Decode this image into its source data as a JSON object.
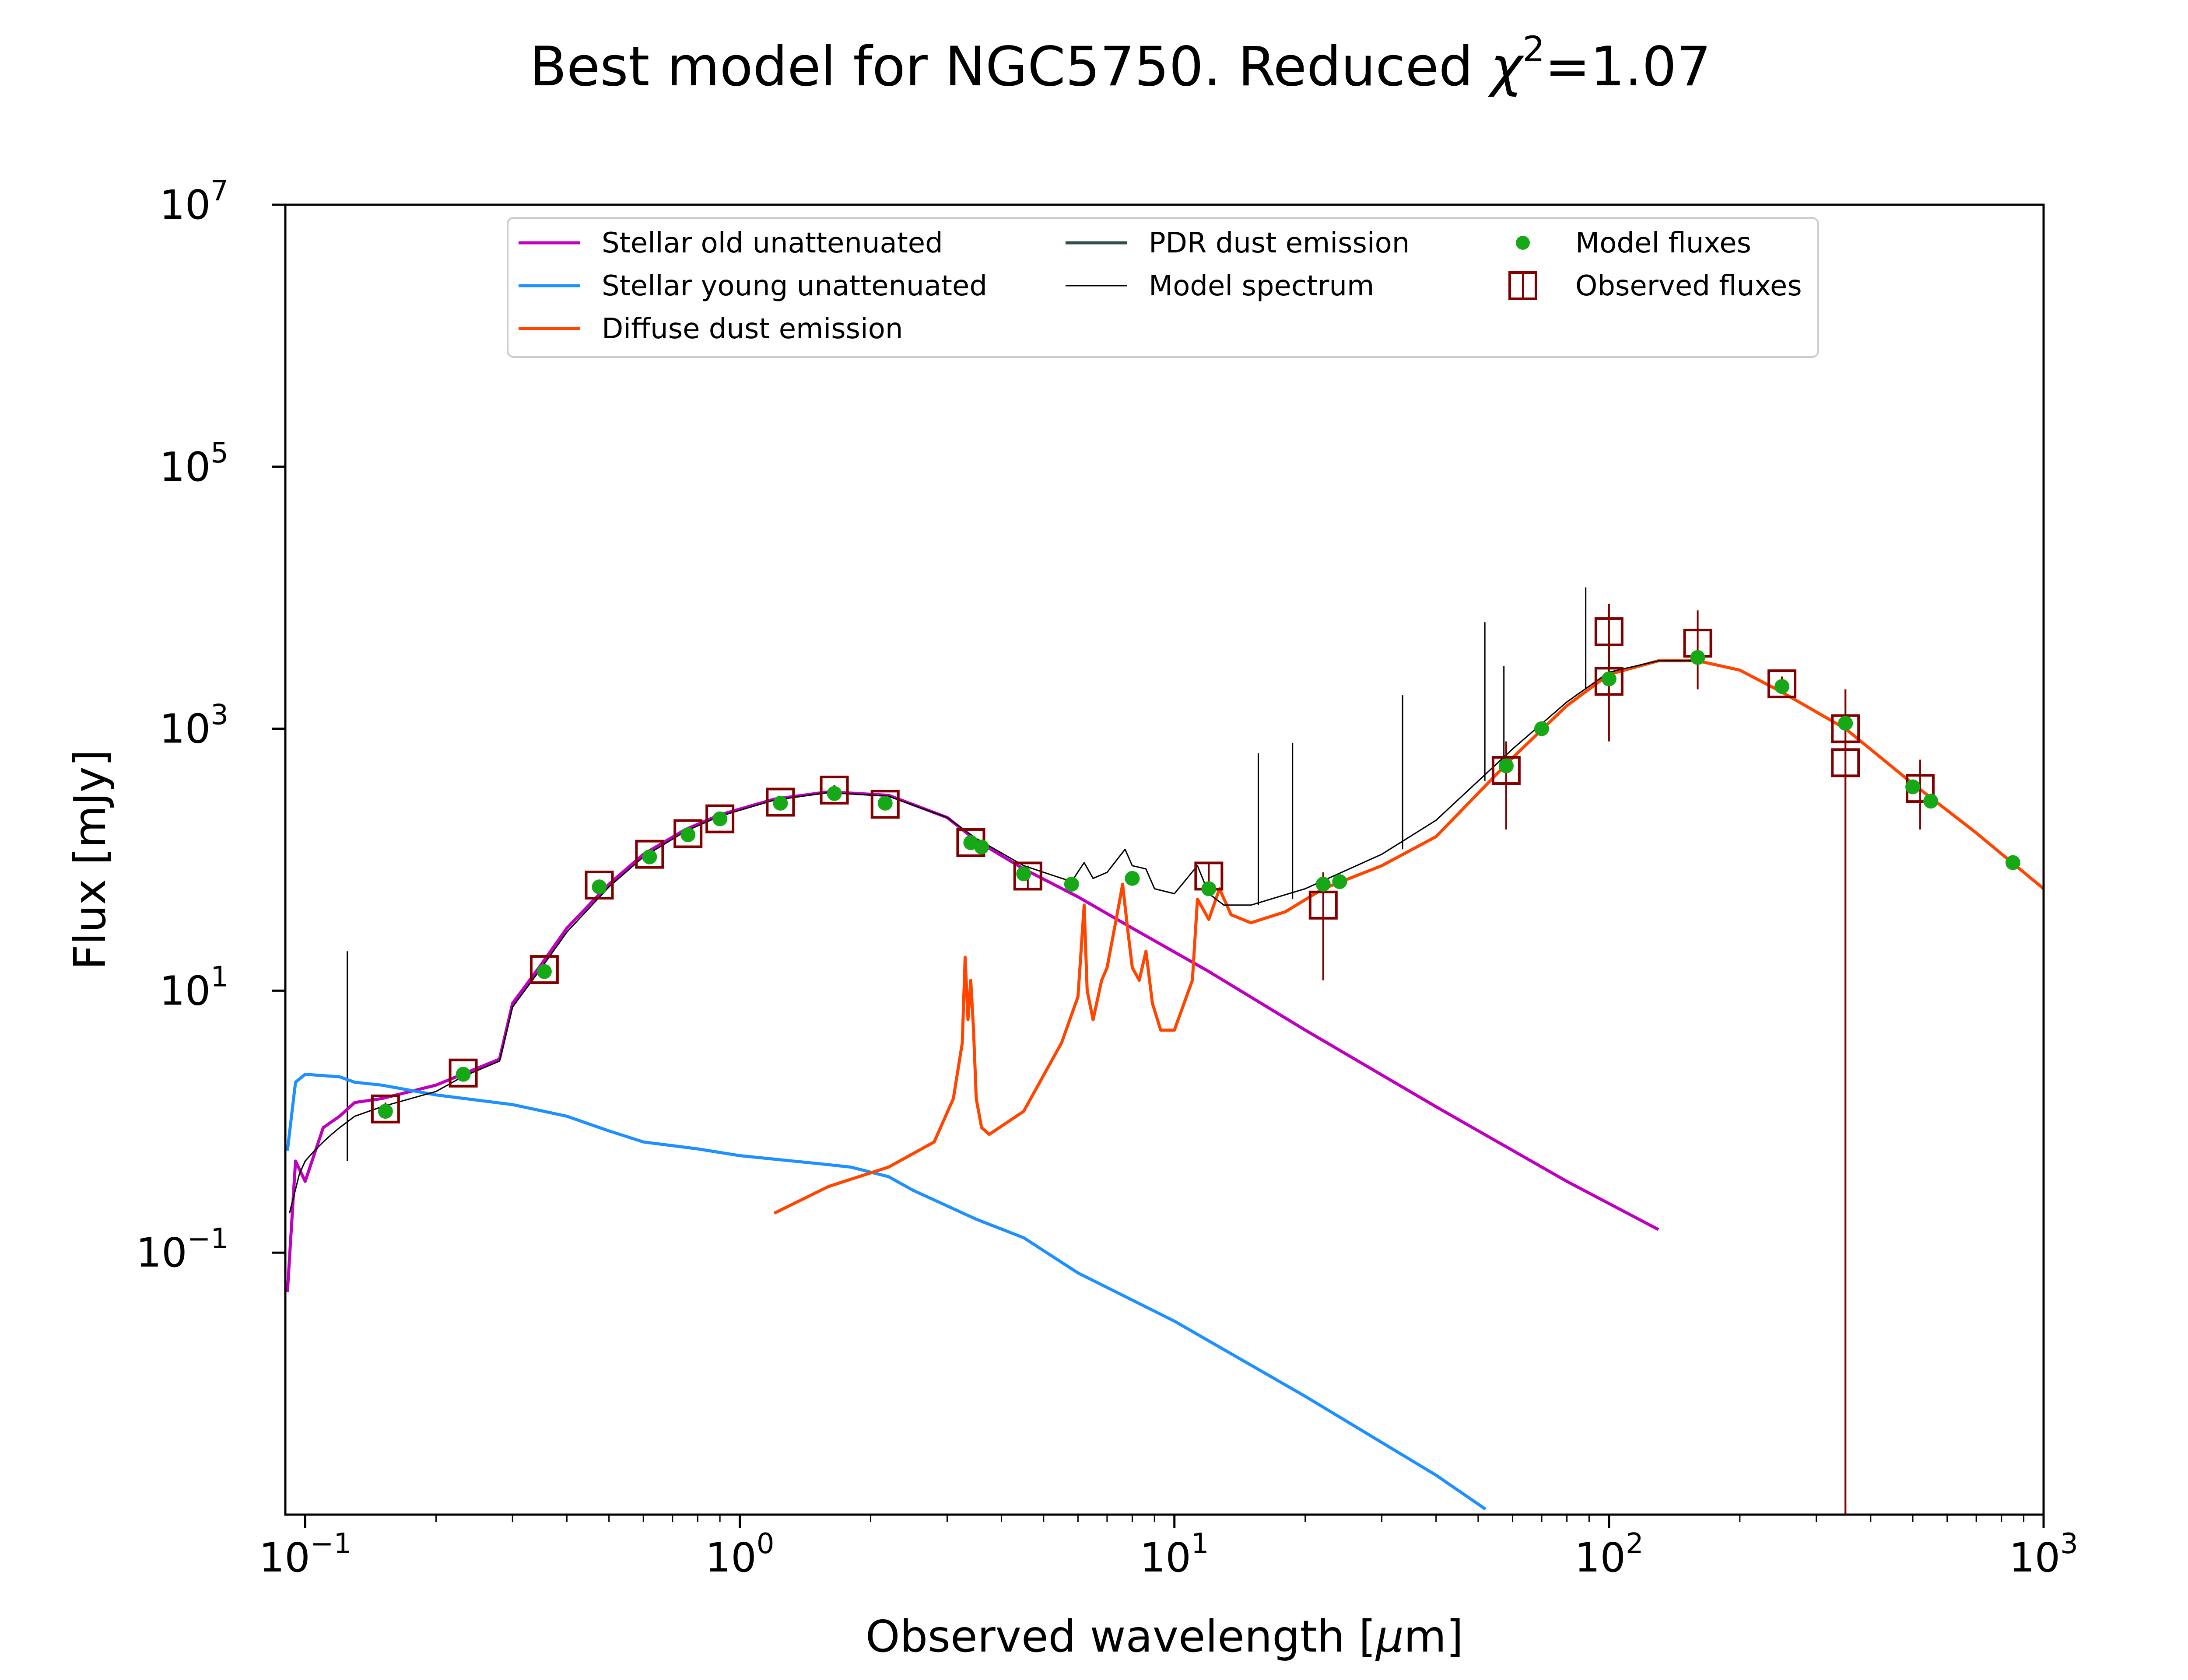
{
  "chart_data": {
    "type": "line",
    "title_prefix": "Best model for NGC5750. Reduced ",
    "title_chi": "χ",
    "title_chi_exp": "2",
    "title_value": "=1.07",
    "xlabel_prefix": "Observed wavelength [",
    "xlabel_mu": "μ",
    "xlabel_suffix": "m]",
    "ylabel": "Flux [mJy]",
    "x_scale": "log",
    "y_scale": "log",
    "xlim": [
      0.09,
      1000
    ],
    "ylim": [
      0.001,
      10000000
    ],
    "grid": false,
    "legend_position": "top-center",
    "x_ticks": [
      {
        "value": 0.1,
        "base": "10",
        "exp": "−1"
      },
      {
        "value": 1,
        "base": "10",
        "exp": "0"
      },
      {
        "value": 10,
        "base": "10",
        "exp": "1"
      },
      {
        "value": 100,
        "base": "10",
        "exp": "2"
      },
      {
        "value": 1000,
        "base": "10",
        "exp": "3"
      }
    ],
    "y_ticks": [
      {
        "value": 0.1,
        "base": "10",
        "exp": "−1"
      },
      {
        "value": 10,
        "base": "10",
        "exp": "1"
      },
      {
        "value": 1000,
        "base": "10",
        "exp": "3"
      },
      {
        "value": 100000,
        "base": "10",
        "exp": "5"
      },
      {
        "value": 10000000,
        "base": "10",
        "exp": "7"
      }
    ],
    "legend": [
      {
        "label": "Stellar old unattenuated",
        "kind": "line",
        "color": "#bf00bf"
      },
      {
        "label": "Stellar young unattenuated",
        "kind": "line",
        "color": "#1e90ff"
      },
      {
        "label": "Diffuse dust emission",
        "kind": "line",
        "color": "#ff4500"
      },
      {
        "label": "PDR dust emission",
        "kind": "line",
        "color": "#2f4f4f"
      },
      {
        "label": "Model spectrum",
        "kind": "thin-line",
        "color": "#000000"
      },
      {
        "label": "Model fluxes",
        "kind": "dot",
        "color": "#17a817"
      },
      {
        "label": "Observed fluxes",
        "kind": "square",
        "color": "#800000"
      }
    ],
    "series": [
      {
        "name": "Stellar old unattenuated",
        "color": "#bf00bf",
        "width": 7,
        "x": [
          0.091,
          0.095,
          0.1,
          0.11,
          0.12,
          0.13,
          0.15,
          0.2,
          0.23,
          0.28,
          0.3,
          0.35,
          0.4,
          0.5,
          0.6,
          0.75,
          0.9,
          1.2,
          1.6,
          2.2,
          3.0,
          3.5,
          4.5,
          6.0,
          8.0,
          12,
          20,
          40,
          80,
          130
        ],
        "y": [
          0.05,
          0.5,
          0.35,
          0.9,
          1.1,
          1.4,
          1.5,
          1.9,
          2.3,
          3.0,
          8.0,
          16,
          30,
          65,
          110,
          170,
          220,
          290,
          330,
          310,
          210,
          140,
          85,
          52,
          30,
          14,
          5,
          1.3,
          0.35,
          0.15
        ]
      },
      {
        "name": "Stellar young unattenuated",
        "color": "#1e90ff",
        "width": 7,
        "x": [
          0.091,
          0.095,
          0.1,
          0.12,
          0.13,
          0.15,
          0.2,
          0.3,
          0.4,
          0.5,
          0.6,
          0.8,
          1.0,
          1.5,
          1.8,
          2.2,
          2.5,
          3.5,
          4.5,
          6.0,
          10,
          20,
          40,
          52
        ],
        "y": [
          0.6,
          2.0,
          2.3,
          2.2,
          2.0,
          1.9,
          1.6,
          1.35,
          1.1,
          0.85,
          0.7,
          0.62,
          0.55,
          0.48,
          0.45,
          0.38,
          0.3,
          0.18,
          0.13,
          0.07,
          0.03,
          0.008,
          0.002,
          0.0011
        ]
      },
      {
        "name": "Diffuse dust emission",
        "color": "#ff4500",
        "width": 7,
        "x": [
          1.2,
          1.6,
          2.2,
          2.8,
          3.1,
          3.25,
          3.3,
          3.35,
          3.4,
          3.45,
          3.5,
          3.6,
          3.75,
          4.5,
          5.5,
          6.0,
          6.2,
          6.3,
          6.5,
          6.8,
          7.0,
          7.4,
          7.6,
          7.8,
          8.0,
          8.3,
          8.6,
          8.9,
          9.3,
          10,
          11,
          11.3,
          12,
          12.7,
          13.5,
          15,
          18,
          22,
          30,
          40,
          60,
          80,
          100,
          130,
          160,
          200,
          250,
          350,
          500,
          700,
          1000
        ],
        "y": [
          0.2,
          0.32,
          0.45,
          0.7,
          1.5,
          4,
          18,
          6,
          12,
          5,
          1.5,
          0.9,
          0.8,
          1.2,
          4,
          9,
          45,
          10,
          6,
          12,
          15,
          40,
          65,
          30,
          15,
          12,
          20,
          8,
          5,
          5,
          12,
          50,
          35,
          60,
          38,
          33,
          40,
          60,
          90,
          150,
          600,
          1500,
          2600,
          3300,
          3300,
          2800,
          1900,
          1000,
          380,
          160,
          60
        ]
      },
      {
        "name": "Model spectrum",
        "color": "#000000",
        "width": 3,
        "x": [
          0.092,
          0.097,
          0.1,
          0.105,
          0.11,
          0.115,
          0.12,
          0.13,
          0.15,
          0.2,
          0.23,
          0.28,
          0.3,
          0.35,
          0.4,
          0.5,
          0.6,
          0.75,
          0.9,
          1.2,
          1.6,
          2.2,
          3.0,
          3.5,
          4.5,
          5.8,
          6.2,
          6.5,
          7.0,
          7.7,
          8.0,
          8.6,
          9.0,
          10,
          11.3,
          12,
          13,
          15,
          20,
          30,
          40,
          60,
          80,
          100,
          130,
          160
        ],
        "y": [
          0.2,
          0.4,
          0.5,
          0.6,
          0.7,
          0.8,
          0.9,
          1.1,
          1.3,
          1.7,
          2.2,
          2.9,
          7.5,
          15,
          28,
          62,
          105,
          165,
          215,
          285,
          325,
          305,
          210,
          145,
          90,
          68,
          95,
          72,
          80,
          120,
          90,
          85,
          60,
          55,
          90,
          55,
          45,
          45,
          60,
          110,
          200,
          700,
          1600,
          2700,
          3300,
          3300
        ]
      }
    ],
    "lines": [
      {
        "x": 0.125,
        "y_from": 0.5,
        "y_to": 20
      },
      {
        "x": 15.6,
        "y_from": 45,
        "y_to": 650
      },
      {
        "x": 18.7,
        "y_from": 50,
        "y_to": 780
      },
      {
        "x": 33.5,
        "y_from": 120,
        "y_to": 1800
      },
      {
        "x": 51.8,
        "y_from": 400,
        "y_to": 6500
      },
      {
        "x": 57.3,
        "y_from": 500,
        "y_to": 3000
      },
      {
        "x": 88.4,
        "y_from": 2000,
        "y_to": 12000
      }
    ],
    "model_fluxes": {
      "x": [
        0.153,
        0.231,
        0.355,
        0.475,
        0.62,
        0.76,
        0.9,
        1.24,
        1.65,
        2.16,
        3.4,
        3.6,
        4.5,
        5.8,
        8.0,
        12,
        22,
        24,
        58,
        70,
        100,
        160,
        250,
        350,
        500,
        550,
        850
      ],
      "y": [
        1.2,
        2.3,
        14,
        62,
        105,
        155,
        205,
        270,
        320,
        270,
        135,
        125,
        78,
        65,
        72,
        60,
        65,
        68,
        520,
        1000,
        2400,
        3500,
        2100,
        1100,
        360,
        280,
        95
      ]
    },
    "observed_fluxes": {
      "x": [
        0.153,
        0.231,
        0.355,
        0.475,
        0.62,
        0.76,
        0.9,
        1.24,
        1.65,
        2.16,
        3.4,
        4.6,
        12,
        22,
        58,
        100,
        100,
        160,
        250,
        350,
        350,
        520
      ],
      "y": [
        1.25,
        2.35,
        14.5,
        64,
        110,
        158,
        205,
        275,
        340,
        265,
        135,
        75,
        75,
        45,
        480,
        2300,
        5500,
        4500,
        2200,
        1000,
        550,
        350
      ],
      "err_lo": [
        1.1,
        2.1,
        13,
        58,
        100,
        145,
        190,
        260,
        310,
        245,
        125,
        60,
        55,
        12,
        170,
        800,
        3000,
        2000,
        1900,
        0.001,
        0.001,
        170
      ],
      "err_hi": [
        1.4,
        2.6,
        16,
        70,
        120,
        170,
        220,
        290,
        370,
        285,
        145,
        90,
        95,
        80,
        800,
        5000,
        9000,
        8000,
        2500,
        2000,
        2000,
        580
      ]
    }
  }
}
